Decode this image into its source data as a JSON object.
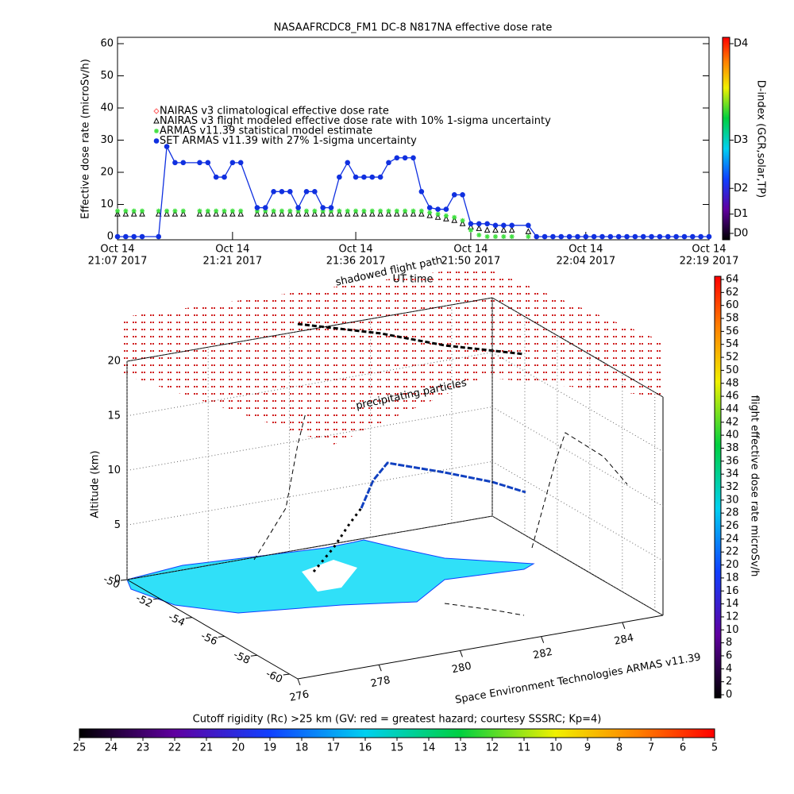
{
  "chart_data": [
    {
      "type": "line",
      "title": "NASAAFRCDC8_FM1 DC-8    N817NA effective dose rate",
      "x_label": "UT time",
      "y_label": "Effective dose rate (microSv/h)",
      "y2_label": "D-index (GCR,solar,TP)",
      "x": [
        "21:07",
        "21:08",
        "21:09",
        "21:10",
        "21:12",
        "21:13",
        "21:14",
        "21:15",
        "21:17",
        "21:18",
        "21:19",
        "21:20",
        "21:21",
        "21:22",
        "21:24",
        "21:25",
        "21:26",
        "21:27",
        "21:28",
        "21:29",
        "21:30",
        "21:31",
        "21:32",
        "21:33",
        "21:34",
        "21:35",
        "21:36",
        "21:37",
        "21:38",
        "21:39",
        "21:40",
        "21:41",
        "21:42",
        "21:43",
        "21:44",
        "21:45",
        "21:46",
        "21:47",
        "21:48",
        "21:49",
        "21:50",
        "21:51",
        "21:52",
        "21:53",
        "21:54",
        "21:55",
        "21:57",
        "21:58",
        "21:59",
        "22:00",
        "22:01",
        "22:02",
        "22:03",
        "22:04",
        "22:05",
        "22:06",
        "22:07",
        "22:08",
        "22:09",
        "22:10",
        "22:11",
        "22:12",
        "22:13",
        "22:14",
        "22:15",
        "22:16",
        "22:17",
        "22:18",
        "22:19"
      ],
      "xlim": [
        "21:07",
        "22:19"
      ],
      "xticks": [
        {
          "value": "21:07",
          "label": [
            "Oct 14",
            "21:07 2017"
          ]
        },
        {
          "value": "21:21",
          "label": [
            "Oct 14",
            "21:21 2017"
          ]
        },
        {
          "value": "21:36",
          "label": [
            "Oct 14",
            "21:36 2017"
          ]
        },
        {
          "value": "21:50",
          "label": [
            "Oct 14",
            "21:50 2017"
          ]
        },
        {
          "value": "22:04",
          "label": [
            "Oct 14",
            "22:04 2017"
          ]
        },
        {
          "value": "22:19",
          "label": [
            "Oct 14",
            "22:19 2017"
          ]
        }
      ],
      "ylim": [
        0,
        60
      ],
      "yticks": [
        0,
        10,
        20,
        30,
        40,
        50,
        60
      ],
      "y2lim": [
        0,
        60
      ],
      "y2ticks": [
        {
          "value": 1,
          "label": "D0"
        },
        {
          "value": 7,
          "label": "D1"
        },
        {
          "value": 15,
          "label": "D2"
        },
        {
          "value": 30,
          "label": "D3"
        },
        {
          "value": 60,
          "label": "D4"
        }
      ],
      "series": [
        {
          "name": "NAIRAS v3 climatological effective dose rate",
          "color": "#ff6060",
          "marker": "diamond",
          "values": [
            null,
            null,
            null,
            null,
            null,
            null,
            null,
            null,
            null,
            null,
            null,
            null,
            null,
            null,
            null,
            null,
            null,
            null,
            null,
            null,
            null,
            null,
            null,
            null,
            null,
            null,
            null,
            null,
            null,
            null,
            null,
            null,
            null,
            null,
            null,
            null,
            null,
            null,
            null,
            null,
            null,
            null,
            null,
            null,
            null,
            null,
            null,
            null,
            null,
            null,
            null,
            null,
            null,
            null,
            null,
            null,
            null,
            null,
            null,
            null,
            null,
            null,
            null,
            null,
            null,
            null,
            null,
            null,
            null
          ]
        },
        {
          "name": "NAIRAS v3 flight modeled effective dose rate with 10% 1-sigma uncertainty",
          "color": "#000000",
          "marker": "triangle",
          "values": [
            7,
            7,
            7,
            7,
            7,
            7,
            7,
            7,
            7,
            7,
            7,
            7,
            7,
            7,
            7,
            7,
            7,
            7,
            7,
            7,
            7,
            7,
            7,
            7,
            7,
            7,
            7,
            7,
            7,
            7,
            7,
            7,
            7,
            7,
            7,
            6.5,
            6,
            5.5,
            5,
            4,
            3,
            2.5,
            2,
            2,
            2,
            2,
            1.5,
            null,
            null,
            null,
            null,
            null,
            null,
            null,
            null,
            null,
            null,
            null,
            null,
            null,
            null,
            null,
            null,
            null,
            null,
            null,
            null,
            null,
            null
          ]
        },
        {
          "name": "ARMAS v11.39 statistical model estimate",
          "color": "#40e040",
          "marker": "asterisk",
          "values": [
            8,
            8,
            8,
            8,
            8,
            8,
            8,
            8,
            8,
            8,
            8,
            8,
            8,
            8,
            8,
            8,
            8,
            8,
            8,
            8,
            8,
            8,
            8,
            8,
            8,
            8,
            8,
            8,
            8,
            8,
            8,
            8,
            8,
            8,
            8,
            7.5,
            7,
            6.5,
            6,
            5,
            2,
            0.5,
            0,
            0,
            0,
            0,
            0,
            null,
            null,
            null,
            null,
            null,
            null,
            null,
            null,
            null,
            null,
            null,
            null,
            null,
            null,
            null,
            null,
            null,
            null,
            null,
            null,
            null,
            null
          ]
        },
        {
          "name": "SET ARMAS v11.39 with 27% 1-sigma uncertainty",
          "color": "#1030e0",
          "marker": "circle",
          "line": true,
          "values": [
            0,
            0,
            0,
            0,
            0,
            28,
            23,
            23,
            23,
            23,
            18.5,
            18.5,
            23,
            23,
            9,
            9,
            14,
            14,
            14,
            9,
            14,
            14,
            9,
            9,
            18.5,
            23,
            18.5,
            18.5,
            18.5,
            18.5,
            23,
            24.5,
            24.5,
            24.5,
            14,
            9,
            8.5,
            8.5,
            13,
            13,
            4,
            4,
            4,
            3.5,
            3.5,
            3.5,
            3.5,
            0,
            0,
            0,
            0,
            0,
            0,
            0,
            0,
            0,
            0,
            0,
            0,
            0,
            0,
            0,
            0,
            0,
            0,
            0,
            0,
            0,
            0
          ]
        }
      ]
    },
    {
      "type": "surface3d",
      "annotations": [
        "shadowed flight path",
        "precipitating particles"
      ],
      "z_label": "Altitude (km)",
      "zlim": [
        0,
        20
      ],
      "zticks": [
        0,
        5,
        10,
        15,
        20
      ],
      "latlim": [
        -50,
        -60.5
      ],
      "latticks": [
        -50,
        -52,
        -54,
        -56,
        -58,
        -60
      ],
      "lonlim": [
        276,
        285
      ],
      "lonticks": [
        276,
        278,
        280,
        282,
        284
      ],
      "credit": "Space Environment Technologies ARMAS v11.39"
    },
    {
      "type": "colorbar",
      "label": "flight effective dose rate microSv/h",
      "lim": [
        0,
        64
      ],
      "ticks": [
        0,
        2,
        4,
        6,
        8,
        10,
        12,
        14,
        16,
        18,
        20,
        22,
        24,
        26,
        28,
        30,
        32,
        34,
        36,
        38,
        40,
        42,
        44,
        46,
        48,
        50,
        52,
        54,
        56,
        58,
        60,
        62,
        64
      ]
    },
    {
      "type": "colorbar",
      "label": "Cutoff rigidity (Rc) >25 km (GV: red = greatest hazard; courtesy SSSRC; Kp=4)",
      "lim": [
        25,
        5
      ],
      "ticks": [
        25,
        24,
        23,
        22,
        21,
        20,
        19,
        18,
        17,
        16,
        15,
        14,
        13,
        12,
        11,
        10,
        9,
        8,
        7,
        6,
        5
      ]
    }
  ]
}
